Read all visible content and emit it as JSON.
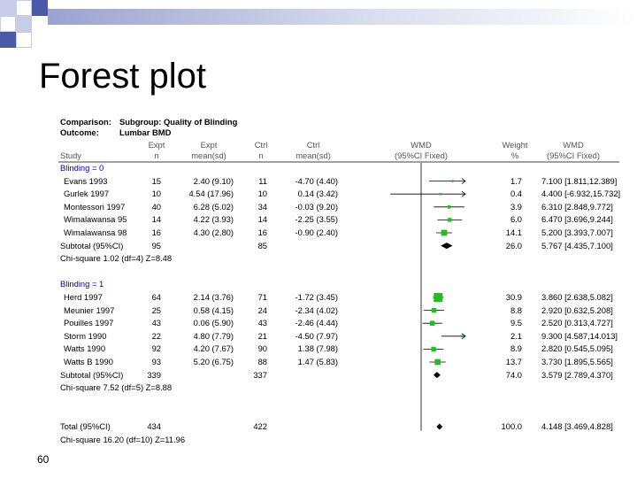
{
  "slide": {
    "title": "Forest plot",
    "number": "60"
  },
  "header": {
    "comparison_label": "Comparison:",
    "comparison_value": "Subgroup: Quality of Blinding",
    "outcome_label": "Outcome:",
    "outcome_value": "Lumbar BMD",
    "columns": {
      "study": "Study",
      "expt_n": [
        "Expt",
        "n"
      ],
      "expt_mean": [
        "Expt",
        "mean(sd)"
      ],
      "ctrl_n": [
        "Ctrl",
        "n"
      ],
      "ctrl_mean": [
        "Ctrl",
        "mean(sd)"
      ],
      "wmd": [
        "WMD",
        "(95%CI Fixed)"
      ],
      "weight": [
        "Weight",
        "%"
      ],
      "wmd_ci": [
        "WMD",
        "(95%CI Fixed)"
      ]
    }
  },
  "colors": {
    "marker": "#1fbf1f",
    "subgroup_label": "#0000c8",
    "diamond": "#000000"
  },
  "chart_data": {
    "type": "forest",
    "xlim": [
      -10,
      10
    ],
    "null_line": 0,
    "groups": [
      {
        "label": "Blinding = 0",
        "studies": [
          {
            "name": "Evans 1993",
            "expt_n": "15",
            "expt_mean": "2.40 (9.10)",
            "ctrl_n": "11",
            "ctrl_mean": "-4.70 (4.40)",
            "weight": "1.7",
            "ci_text": "7.100 [1.811,12.389]",
            "wmd": 7.1,
            "lo": 1.811,
            "hi": 12.389
          },
          {
            "name": "Gurlek 1997",
            "expt_n": "10",
            "expt_mean": "4.54 (17.96)",
            "ctrl_n": "10",
            "ctrl_mean": "0.14 (3.42)",
            "weight": "0.4",
            "ci_text": "4.400 [-6.932,15.732]",
            "wmd": 4.4,
            "lo": -6.932,
            "hi": 15.732
          },
          {
            "name": "Montessori 1997",
            "expt_n": "40",
            "expt_mean": "6.28 (5.02)",
            "ctrl_n": "34",
            "ctrl_mean": "-0.03 (9.20)",
            "weight": "3.9",
            "ci_text": "6.310 [2.848,9.772]",
            "wmd": 6.31,
            "lo": 2.848,
            "hi": 9.772
          },
          {
            "name": "Wimalawansa 95",
            "expt_n": "14",
            "expt_mean": "4.22 (3.93)",
            "ctrl_n": "14",
            "ctrl_mean": "-2.25 (3.55)",
            "weight": "6.0",
            "ci_text": "6.470 [3.696,9.244]",
            "wmd": 6.47,
            "lo": 3.696,
            "hi": 9.244
          },
          {
            "name": "Wimalawansa 98",
            "expt_n": "16",
            "expt_mean": "4.30 (2.80)",
            "ctrl_n": "16",
            "ctrl_mean": "-0.90 (2.40)",
            "weight": "14.1",
            "ci_text": "5.200 [3.393,7.007]",
            "wmd": 5.2,
            "lo": 3.393,
            "hi": 7.007
          }
        ],
        "subtotal": {
          "label": "Subtotal (95%CI)",
          "expt_n": "95",
          "ctrl_n": "85",
          "weight": "26.0",
          "ci_text": "5.767 [4.435,7.100]",
          "wmd": 5.767,
          "lo": 4.435,
          "hi": 7.1
        },
        "heterogeneity": "Chi-square 1.02 (df=4)  Z=8.48"
      },
      {
        "label": "Blinding = 1",
        "studies": [
          {
            "name": "Herd 1997",
            "expt_n": "64",
            "expt_mean": "2.14 (3.76)",
            "ctrl_n": "71",
            "ctrl_mean": "-1.72 (3.45)",
            "weight": "30.9",
            "ci_text": "3.860 [2.638,5.082]",
            "wmd": 3.86,
            "lo": 2.638,
            "hi": 5.082
          },
          {
            "name": "Meunier 1997",
            "expt_n": "25",
            "expt_mean": "0.58 (4.15)",
            "ctrl_n": "24",
            "ctrl_mean": "-2.34 (4.02)",
            "weight": "8.8",
            "ci_text": "2.920 [0.632,5.208]",
            "wmd": 2.92,
            "lo": 0.632,
            "hi": 5.208
          },
          {
            "name": "Pouilles 1997",
            "expt_n": "43",
            "expt_mean": "0.06 (5.90)",
            "ctrl_n": "43",
            "ctrl_mean": "-2.46 (4.44)",
            "weight": "9.5",
            "ci_text": "2.520 [0.313,4.727]",
            "wmd": 2.52,
            "lo": 0.313,
            "hi": 4.727
          },
          {
            "name": "Storm 1990",
            "expt_n": "22",
            "expt_mean": "4.80 (7.79)",
            "ctrl_n": "21",
            "ctrl_mean": "-4.50 (7.97)",
            "weight": "2.1",
            "ci_text": "9.300 [4.587,14.013]",
            "wmd": 9.3,
            "lo": 4.587,
            "hi": 14.013
          },
          {
            "name": "Watts 1990",
            "expt_n": "92",
            "expt_mean": "4.20 (7.67)",
            "ctrl_n": "90",
            "ctrl_mean": "1.38 (7.98)",
            "weight": "8.9",
            "ci_text": "2.820 [0.545,5.095]",
            "wmd": 2.82,
            "lo": 0.545,
            "hi": 5.095
          },
          {
            "name": "Watts B 1990",
            "expt_n": "93",
            "expt_mean": "5.20 (6.75)",
            "ctrl_n": "88",
            "ctrl_mean": "1.47 (5.83)",
            "weight": "13.7",
            "ci_text": "3.730 [1.895,5.565]",
            "wmd": 3.73,
            "lo": 1.895,
            "hi": 5.565
          }
        ],
        "subtotal": {
          "label": "Subtotal (95%CI)",
          "expt_n": "339",
          "ctrl_n": "337",
          "weight": "74.0",
          "ci_text": "3.579 [2.789,4.370]",
          "wmd": 3.579,
          "lo": 2.789,
          "hi": 4.37
        },
        "heterogeneity": "Chi-square 7.52 (df=5)  Z=8.88"
      }
    ],
    "total": {
      "label": "Total (95%CI)",
      "expt_n": "434",
      "ctrl_n": "422",
      "weight": "100.0",
      "ci_text": "4.148 [3.469,4.828]",
      "wmd": 4.148,
      "lo": 3.469,
      "hi": 4.828,
      "heterogeneity": "Chi-square 16.20 (df=10)  Z=11.96"
    }
  }
}
